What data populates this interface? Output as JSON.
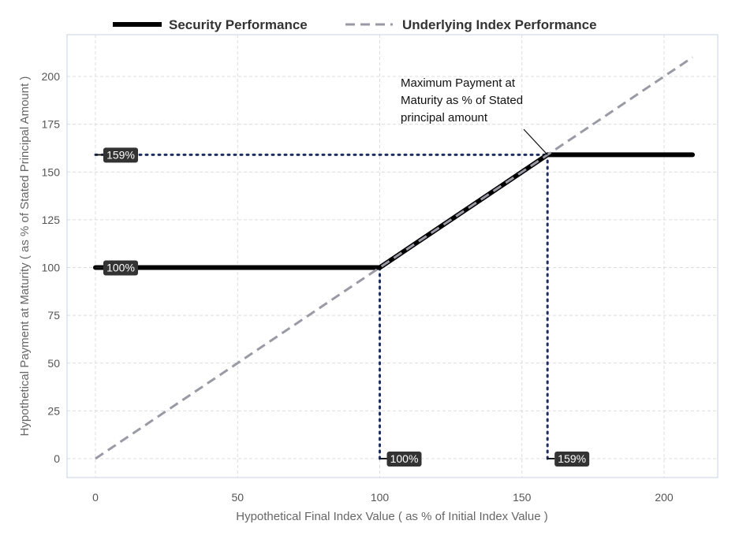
{
  "chart_data": {
    "type": "line",
    "xlabel": "Hypothetical Final Index Value ( as % of Initial Index Value )",
    "ylabel": "Hypothetical Payment at Maturity ( as % of Stated Principal Amount )",
    "xlim": [
      -10,
      220
    ],
    "ylim": [
      -10,
      220
    ],
    "x_ticks": [
      0,
      50,
      100,
      150,
      200
    ],
    "y_ticks": [
      0,
      25,
      50,
      75,
      100,
      125,
      150,
      175,
      200
    ],
    "grid": true,
    "legend_position": "top",
    "series": [
      {
        "name": "Security Performance",
        "style": "solid",
        "color": "#000000",
        "x": [
          0,
          100,
          159,
          210
        ],
        "y": [
          100,
          100,
          159,
          159
        ]
      },
      {
        "name": "Underlying Index Performance",
        "style": "dashed",
        "color": "#9a9aa6",
        "x": [
          0,
          210
        ],
        "y": [
          0,
          210
        ]
      }
    ],
    "reference_lines": [
      {
        "type": "horizontal",
        "y": 159,
        "x_from": 0,
        "x_to": 159,
        "style": "dotted",
        "color": "#1f3060"
      },
      {
        "type": "vertical",
        "x": 100,
        "y_from": 0,
        "y_to": 100,
        "style": "dotted",
        "color": "#1f3060"
      },
      {
        "type": "vertical",
        "x": 159,
        "y_from": 0,
        "y_to": 159,
        "style": "dotted",
        "color": "#1f3060"
      }
    ],
    "callouts": [
      {
        "text": "159%",
        "anchor": "y-axis",
        "value": 159
      },
      {
        "text": "100%",
        "anchor": "y-axis",
        "value": 100
      },
      {
        "text": "100%",
        "anchor": "x-axis",
        "value": 100
      },
      {
        "text": "159%",
        "anchor": "x-axis",
        "value": 159
      }
    ],
    "annotation": {
      "lines": [
        "Maximum Payment at",
        "Maturity as % of Stated",
        "principal amount"
      ],
      "points_to": {
        "x": 159,
        "y": 159
      }
    }
  }
}
